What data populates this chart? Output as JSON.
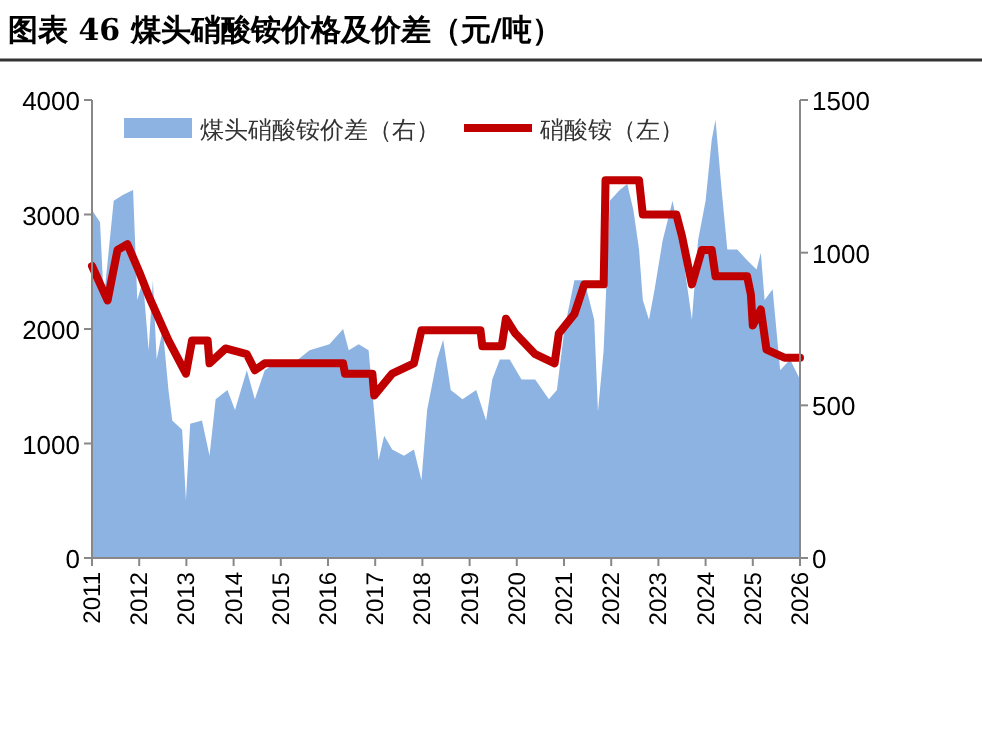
{
  "chart_data": {
    "type": "line",
    "title": "图表 46 煤头硝酸铵价格及价差（元/吨）",
    "xlim": [
      2011,
      2026
    ],
    "xticks": [
      2011,
      2012,
      2013,
      2014,
      2015,
      2016,
      2017,
      2018,
      2019,
      2020,
      2021,
      2022,
      2023,
      2024,
      2025,
      2026
    ],
    "ylim": [
      0,
      4000
    ],
    "yticks": [
      0,
      1000,
      2000,
      3000,
      4000
    ],
    "y2lim": [
      0,
      1500
    ],
    "y2ticks": [
      0,
      500,
      1000,
      1500
    ],
    "legend": "top",
    "grid": false,
    "series": [
      {
        "name": "煤头硝酸铵价差（右）",
        "type": "area",
        "axis": "y2",
        "color": "#8db3e2",
        "x": [
          2011.0,
          2011.17,
          2011.25,
          2011.46,
          2011.66,
          2011.87,
          2011.96,
          2012.08,
          2012.2,
          2012.29,
          2012.37,
          2012.5,
          2012.62,
          2012.7,
          2012.91,
          2012.99,
          2013.08,
          2013.33,
          2013.49,
          2013.62,
          2013.87,
          2014.03,
          2014.28,
          2014.45,
          2014.66,
          2014.86,
          2015.2,
          2015.61,
          2016.03,
          2016.32,
          2016.44,
          2016.65,
          2016.86,
          2017.07,
          2017.19,
          2017.36,
          2017.61,
          2017.82,
          2017.98,
          2018.1,
          2018.31,
          2018.44,
          2018.6,
          2018.85,
          2019.14,
          2019.35,
          2019.48,
          2019.64,
          2019.85,
          2020.1,
          2020.39,
          2020.68,
          2020.85,
          2021.01,
          2021.22,
          2021.43,
          2021.64,
          2021.72,
          2021.84,
          2021.97,
          2022.18,
          2022.34,
          2022.47,
          2022.59,
          2022.67,
          2022.8,
          2022.92,
          2023.09,
          2023.3,
          2023.5,
          2023.71,
          2023.84,
          2024.0,
          2024.13,
          2024.21,
          2024.34,
          2024.46,
          2024.67,
          2024.88,
          2025.08,
          2025.17,
          2025.25,
          2025.42,
          2025.58,
          2025.79,
          2026.0
        ],
        "values": [
          1140,
          1100,
          845,
          1170,
          1190,
          1205,
          845,
          910,
          680,
          910,
          650,
          750,
          550,
          450,
          420,
          190,
          440,
          450,
          335,
          520,
          550,
          485,
          615,
          520,
          615,
          635,
          630,
          680,
          700,
          750,
          680,
          700,
          680,
          320,
          400,
          355,
          335,
          355,
          255,
          485,
          650,
          715,
          550,
          520,
          550,
          450,
          585,
          650,
          650,
          585,
          585,
          520,
          550,
          750,
          910,
          910,
          780,
          480,
          680,
          1170,
          1205,
          1225,
          1140,
          1010,
          845,
          780,
          880,
          1040,
          1170,
          1010,
          780,
          1040,
          1170,
          1370,
          1435,
          1205,
          1010,
          1010,
          975,
          945,
          1000,
          845,
          880,
          615,
          650,
          585
        ]
      },
      {
        "name": "硝酸铵（左）",
        "axis": "y",
        "color": "#c00000",
        "x": [
          2011.0,
          2011.33,
          2011.54,
          2011.75,
          2012.0,
          2012.2,
          2012.62,
          2012.99,
          2013.12,
          2013.45,
          2013.49,
          2013.83,
          2014.28,
          2014.45,
          2014.66,
          2016.32,
          2016.36,
          2016.94,
          2016.98,
          2017.36,
          2017.82,
          2017.98,
          2019.23,
          2019.27,
          2019.68,
          2019.77,
          2019.97,
          2020.39,
          2020.8,
          2020.89,
          2021.22,
          2021.43,
          2021.84,
          2021.88,
          2022.59,
          2022.67,
          2023.38,
          2023.5,
          2023.71,
          2023.92,
          2024.13,
          2024.21,
          2024.88,
          2024.96,
          2025.0,
          2025.17,
          2025.29,
          2025.67,
          2026.0
        ],
        "values": [
          2550,
          2250,
          2690,
          2740,
          2500,
          2290,
          1900,
          1610,
          1900,
          1900,
          1700,
          1830,
          1780,
          1640,
          1700,
          1700,
          1610,
          1610,
          1420,
          1610,
          1700,
          1990,
          1990,
          1850,
          1850,
          2090,
          1960,
          1780,
          1700,
          1960,
          2130,
          2390,
          2390,
          3300,
          3300,
          3000,
          3000,
          2810,
          2390,
          2690,
          2690,
          2460,
          2460,
          2300,
          2030,
          2170,
          1820,
          1750,
          1750
        ]
      }
    ]
  }
}
